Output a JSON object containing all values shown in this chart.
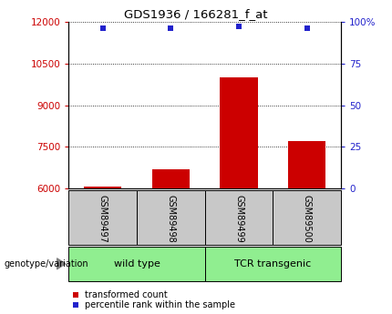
{
  "title": "GDS1936 / 166281_f_at",
  "samples": [
    "GSM89497",
    "GSM89498",
    "GSM89499",
    "GSM89500"
  ],
  "bar_values": [
    6080,
    6680,
    10000,
    7700
  ],
  "bar_base": 6000,
  "percentile_values": [
    96.5,
    96.5,
    97.5,
    96.5
  ],
  "bar_color": "#cc0000",
  "percentile_color": "#2222cc",
  "left_yticks": [
    6000,
    7500,
    9000,
    10500,
    12000
  ],
  "right_ytick_vals": [
    0,
    25,
    50,
    75,
    100
  ],
  "right_ytick_labels": [
    "0",
    "25",
    "50",
    "75",
    "100%"
  ],
  "ylim_left": [
    6000,
    12000
  ],
  "ylim_right": [
    0,
    100
  ],
  "sample_box_color": "#c8c8c8",
  "group1_label": "wild type",
  "group2_label": "TCR transgenic",
  "group_color": "#90EE90",
  "annotation_text": "genotype/variation",
  "legend_bar_label": "transformed count",
  "legend_pct_label": "percentile rank within the sample",
  "left_tick_color": "#cc0000",
  "right_tick_color": "#2222cc",
  "bar_width": 0.55
}
